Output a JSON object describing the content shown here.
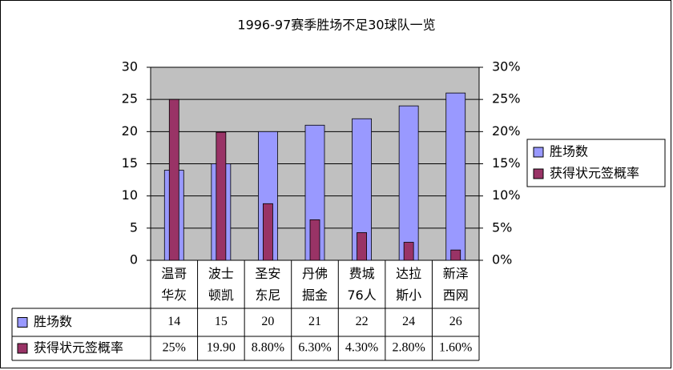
{
  "chart_data": {
    "type": "bar",
    "title": "1996-97赛季胜场不足30球队一览",
    "categories": [
      "温哥华灰",
      "波士顿凯",
      "圣安东尼",
      "丹佛掘金",
      "费城76人",
      "达拉斯小",
      "新泽西网"
    ],
    "series": [
      {
        "name": "胜场数",
        "color": "#9999ff",
        "values": [
          14,
          15,
          20,
          21,
          22,
          24,
          26
        ]
      },
      {
        "name": "获得状元签概率",
        "color": "#993366",
        "axis": "y2",
        "values": [
          25,
          19.9,
          8.8,
          6.3,
          4.3,
          2.8,
          1.6
        ],
        "value_labels": [
          "25%",
          "19.90",
          "8.80%",
          "6.30%",
          "4.30%",
          "2.80%",
          "1.60%"
        ]
      }
    ],
    "ylim": [
      0,
      30
    ],
    "yticks": [
      0,
      5,
      10,
      15,
      20,
      25,
      30
    ],
    "y2lim": [
      0,
      30
    ],
    "y2ticks": [
      {
        "value": 0,
        "label": "0%"
      },
      {
        "value": 5,
        "label": "5%"
      },
      {
        "value": 10,
        "label": "10%"
      },
      {
        "value": 15,
        "label": "15%"
      },
      {
        "value": 20,
        "label": "20%"
      },
      {
        "value": 25,
        "label": "25%"
      },
      {
        "value": 30,
        "label": "30%"
      }
    ],
    "grid": true,
    "legend": "right",
    "plot_background": "#c0c0c0"
  }
}
